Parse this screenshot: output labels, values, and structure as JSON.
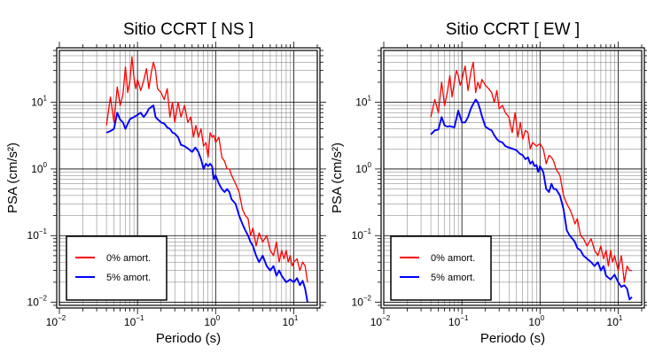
{
  "chart_data": [
    {
      "type": "line",
      "title": "Sitio CCRT [ NS ]",
      "xlabel": "Periodo (s)",
      "ylabel": "PSA (cm/s²)",
      "xscale": "log",
      "yscale": "log",
      "xlim": [
        0.01,
        20
      ],
      "ylim": [
        0.009,
        60
      ],
      "grid": true,
      "legend_position": "bottom-left",
      "x_ticks": [
        {
          "value": 0.01,
          "base": "10",
          "exp": "−2"
        },
        {
          "value": 0.1,
          "base": "10",
          "exp": "−1"
        },
        {
          "value": 1,
          "base": "10",
          "exp": "0"
        },
        {
          "value": 10,
          "base": "10",
          "exp": "1"
        }
      ],
      "y_ticks": [
        {
          "value": 0.01,
          "base": "10",
          "exp": "−2"
        },
        {
          "value": 0.1,
          "base": "10",
          "exp": "−1"
        },
        {
          "value": 1,
          "base": "10",
          "exp": "0"
        },
        {
          "value": 10,
          "base": "10",
          "exp": "1"
        }
      ],
      "series": [
        {
          "name": "0% amort.",
          "color": "#ff0000",
          "x": [
            0.04,
            0.045,
            0.05,
            0.055,
            0.06,
            0.065,
            0.07,
            0.075,
            0.08,
            0.085,
            0.09,
            0.095,
            0.1,
            0.11,
            0.12,
            0.13,
            0.14,
            0.15,
            0.16,
            0.17,
            0.18,
            0.2,
            0.22,
            0.24,
            0.26,
            0.28,
            0.3,
            0.33,
            0.36,
            0.4,
            0.44,
            0.48,
            0.52,
            0.56,
            0.6,
            0.65,
            0.7,
            0.75,
            0.8,
            0.85,
            0.9,
            0.95,
            1.0,
            1.1,
            1.2,
            1.3,
            1.4,
            1.5,
            1.6,
            1.8,
            2.0,
            2.2,
            2.4,
            2.6,
            2.8,
            3.0,
            3.3,
            3.6,
            4.0,
            4.5,
            5.0,
            5.5,
            6.0,
            6.5,
            7.0,
            7.5,
            8.0,
            8.5,
            9.0,
            9.5,
            10,
            11,
            12,
            13,
            14,
            15
          ],
          "y": [
            4.5,
            12,
            5,
            17,
            9,
            13,
            34,
            14,
            21,
            48,
            24,
            16,
            22,
            15,
            21,
            32,
            16,
            28,
            40,
            30,
            16,
            14,
            11,
            16,
            6,
            10,
            5,
            10,
            6,
            9,
            5,
            6,
            3,
            4.5,
            3,
            4,
            2.2,
            2.5,
            1.5,
            3.5,
            3,
            3.2,
            2.5,
            3,
            1.5,
            1.3,
            1,
            1,
            0.8,
            0.6,
            0.45,
            0.25,
            0.2,
            0.18,
            0.1,
            0.13,
            0.07,
            0.11,
            0.08,
            0.1,
            0.06,
            0.05,
            0.08,
            0.04,
            0.06,
            0.045,
            0.06,
            0.04,
            0.05,
            0.035,
            0.04,
            0.045,
            0.03,
            0.04,
            0.035,
            0.02
          ]
        },
        {
          "name": "5% amort.",
          "color": "#0000ff",
          "x": [
            0.04,
            0.045,
            0.05,
            0.055,
            0.06,
            0.065,
            0.07,
            0.08,
            0.09,
            0.1,
            0.11,
            0.12,
            0.13,
            0.14,
            0.15,
            0.16,
            0.17,
            0.18,
            0.2,
            0.22,
            0.24,
            0.26,
            0.28,
            0.3,
            0.33,
            0.36,
            0.4,
            0.45,
            0.5,
            0.55,
            0.6,
            0.65,
            0.7,
            0.75,
            0.8,
            0.85,
            0.9,
            0.95,
            1.0,
            1.1,
            1.2,
            1.3,
            1.4,
            1.5,
            1.6,
            1.8,
            2.0,
            2.2,
            2.4,
            2.6,
            2.8,
            3.0,
            3.3,
            3.6,
            4.0,
            4.5,
            5.0,
            5.5,
            6.0,
            6.5,
            7.0,
            8.0,
            9.0,
            10,
            11,
            12,
            13,
            14,
            15
          ],
          "y": [
            3.5,
            3.7,
            4,
            7,
            5.5,
            5,
            4,
            5.6,
            6,
            6.5,
            7,
            6,
            6.8,
            8,
            8.5,
            9,
            6,
            5.6,
            5,
            4.8,
            4.2,
            4,
            3.5,
            3.4,
            3,
            2.3,
            2.2,
            2,
            1.8,
            2.1,
            1.8,
            1.4,
            1,
            1.2,
            1.1,
            1.2,
            1.1,
            0.7,
            0.8,
            0.6,
            0.5,
            0.45,
            0.5,
            0.45,
            0.35,
            0.3,
            0.2,
            0.15,
            0.12,
            0.1,
            0.08,
            0.07,
            0.05,
            0.04,
            0.05,
            0.035,
            0.03,
            0.035,
            0.025,
            0.03,
            0.025,
            0.02,
            0.022,
            0.02,
            0.023,
            0.018,
            0.021,
            0.016,
            0.01
          ]
        }
      ]
    },
    {
      "type": "line",
      "title": "Sitio CCRT [ EW ]",
      "xlabel": "Periodo (s)",
      "ylabel": "PSA (cm/s²)",
      "xscale": "log",
      "yscale": "log",
      "xlim": [
        0.01,
        20
      ],
      "ylim": [
        0.009,
        60
      ],
      "grid": true,
      "legend_position": "bottom-left",
      "x_ticks": [
        {
          "value": 0.01,
          "base": "10",
          "exp": "−2"
        },
        {
          "value": 0.1,
          "base": "10",
          "exp": "−1"
        },
        {
          "value": 1,
          "base": "10",
          "exp": "0"
        },
        {
          "value": 10,
          "base": "10",
          "exp": "1"
        }
      ],
      "y_ticks": [
        {
          "value": 0.01,
          "base": "10",
          "exp": "−2"
        },
        {
          "value": 0.1,
          "base": "10",
          "exp": "−1"
        },
        {
          "value": 1,
          "base": "10",
          "exp": "0"
        },
        {
          "value": 10,
          "base": "10",
          "exp": "1"
        }
      ],
      "series": [
        {
          "name": "0% amort.",
          "color": "#ff0000",
          "x": [
            0.04,
            0.045,
            0.05,
            0.055,
            0.06,
            0.065,
            0.07,
            0.075,
            0.08,
            0.085,
            0.09,
            0.095,
            0.1,
            0.11,
            0.12,
            0.13,
            0.14,
            0.15,
            0.16,
            0.17,
            0.18,
            0.2,
            0.22,
            0.24,
            0.26,
            0.28,
            0.3,
            0.33,
            0.36,
            0.4,
            0.44,
            0.48,
            0.52,
            0.56,
            0.6,
            0.65,
            0.7,
            0.75,
            0.8,
            0.9,
            1.0,
            1.1,
            1.2,
            1.3,
            1.4,
            1.5,
            1.6,
            1.8,
            2.0,
            2.2,
            2.4,
            2.6,
            2.8,
            3.0,
            3.3,
            3.6,
            4.0,
            4.5,
            5.0,
            5.5,
            6.0,
            6.5,
            7.0,
            7.5,
            8.0,
            8.5,
            9.0,
            10,
            11,
            12,
            13,
            14,
            15
          ],
          "y": [
            6,
            11,
            7,
            20,
            9,
            14,
            25,
            12,
            20,
            30,
            25,
            18,
            22,
            35,
            15,
            28,
            40,
            14,
            20,
            16,
            22,
            18,
            16,
            14,
            10,
            15,
            8,
            9,
            7,
            6,
            3.5,
            7,
            3,
            5,
            2.8,
            3.8,
            3.5,
            2,
            2.5,
            2.2,
            2.4,
            2,
            1.2,
            1.6,
            1.5,
            1.3,
            1,
            0.8,
            0.4,
            0.3,
            0.25,
            0.2,
            0.15,
            0.18,
            0.1,
            0.09,
            0.07,
            0.09,
            0.06,
            0.05,
            0.07,
            0.045,
            0.06,
            0.035,
            0.06,
            0.04,
            0.05,
            0.03,
            0.05,
            0.02,
            0.035,
            0.03,
            0.03
          ]
        },
        {
          "name": "5% amort.",
          "color": "#0000ff",
          "x": [
            0.04,
            0.045,
            0.05,
            0.055,
            0.06,
            0.065,
            0.07,
            0.08,
            0.09,
            0.1,
            0.11,
            0.12,
            0.13,
            0.14,
            0.15,
            0.16,
            0.17,
            0.18,
            0.2,
            0.22,
            0.24,
            0.26,
            0.28,
            0.3,
            0.33,
            0.36,
            0.4,
            0.45,
            0.5,
            0.55,
            0.6,
            0.65,
            0.7,
            0.75,
            0.8,
            0.85,
            0.9,
            0.95,
            1.0,
            1.1,
            1.2,
            1.3,
            1.4,
            1.5,
            1.6,
            1.8,
            2.0,
            2.2,
            2.4,
            2.6,
            2.8,
            3.0,
            3.3,
            3.6,
            4.0,
            4.5,
            5.0,
            5.5,
            6.0,
            6.5,
            7.0,
            8.0,
            9.0,
            10,
            11,
            12,
            13,
            14,
            15
          ],
          "y": [
            3.3,
            3.8,
            3.9,
            6,
            4.5,
            4.3,
            4.4,
            4.2,
            7.5,
            5,
            5,
            6,
            8,
            9.5,
            11,
            10,
            8,
            6.2,
            4.3,
            4,
            3.8,
            3.2,
            2.8,
            2.6,
            2.5,
            2.2,
            2.1,
            2,
            1.9,
            1.7,
            1.6,
            1.4,
            1.5,
            1.2,
            1.3,
            1.1,
            1.15,
            0.9,
            1.1,
            0.9,
            0.5,
            0.45,
            0.6,
            0.5,
            0.5,
            0.4,
            0.25,
            0.12,
            0.1,
            0.09,
            0.08,
            0.065,
            0.06,
            0.05,
            0.045,
            0.04,
            0.035,
            0.04,
            0.03,
            0.035,
            0.025,
            0.022,
            0.026,
            0.02,
            0.017,
            0.018,
            0.016,
            0.011,
            0.012
          ]
        }
      ]
    }
  ]
}
